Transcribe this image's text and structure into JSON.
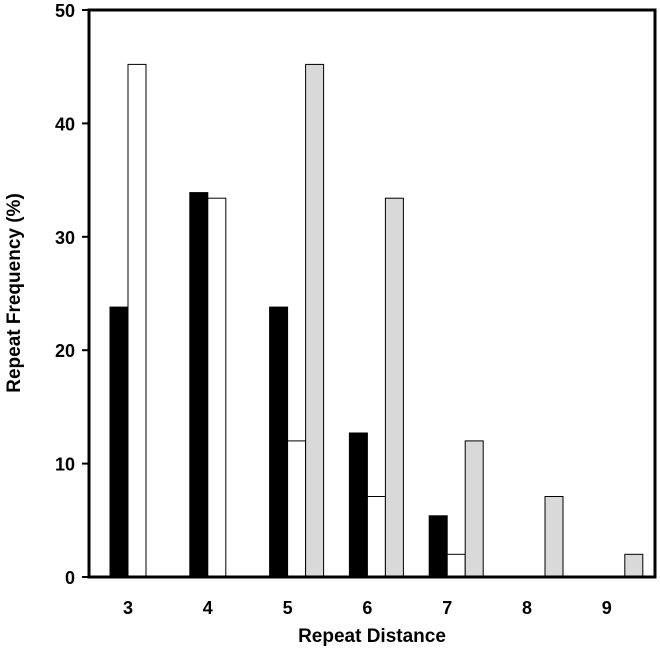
{
  "chart_data": {
    "type": "bar",
    "title": "",
    "xlabel": "Repeat Distance",
    "ylabel": "Repeat Frequency (%)",
    "categories": [
      "3",
      "4",
      "5",
      "6",
      "7",
      "8",
      "9"
    ],
    "ylim": [
      0,
      50
    ],
    "yticks": [
      0,
      10,
      20,
      30,
      40,
      50
    ],
    "grid": false,
    "legend": "none",
    "series": [
      {
        "color": "#000000",
        "values": [
          23.8,
          33.9,
          23.8,
          12.7,
          5.4,
          0,
          0
        ]
      },
      {
        "color": "#ffffff",
        "values": [
          45.2,
          33.4,
          12.0,
          7.1,
          2.0,
          0,
          0
        ]
      },
      {
        "color": "#d9d9d9",
        "values": [
          0,
          0,
          45.2,
          33.4,
          12.0,
          7.1,
          2.0
        ]
      }
    ]
  }
}
